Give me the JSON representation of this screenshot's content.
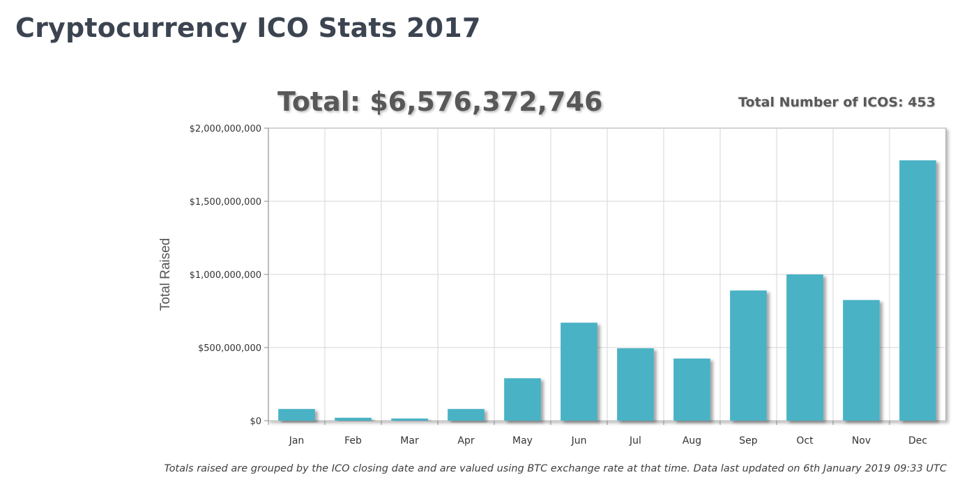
{
  "page": {
    "title": "Cryptocurrency ICO Stats 2017",
    "footnote": "Totals raised are grouped by the ICO closing date and are valued using BTC exchange rate at that time. Data last updated on 6th January 2019 09:33 UTC"
  },
  "colors": {
    "bar": "#4ab2c5",
    "grid": "#d6d6d6",
    "frame": "#aaaaaa",
    "title": "#3b4450"
  },
  "chart_data": {
    "type": "bar",
    "title": "Total: $6,576,372,746",
    "subtitle": "Total Number of ICOS: 453",
    "xlabel": "",
    "ylabel": "Total Raised",
    "categories": [
      "Jan",
      "Feb",
      "Mar",
      "Apr",
      "May",
      "Jun",
      "Jul",
      "Aug",
      "Sep",
      "Oct",
      "Nov",
      "Dec"
    ],
    "values": [
      80000000,
      20000000,
      15000000,
      80000000,
      290000000,
      670000000,
      495000000,
      425000000,
      890000000,
      1000000000,
      825000000,
      1780000000
    ],
    "ylim": [
      0,
      2000000000
    ],
    "yticks": [
      0,
      500000000,
      1000000000,
      1500000000,
      2000000000
    ],
    "ytick_labels": [
      "$0",
      "$500,000,000",
      "$1,000,000,000",
      "$1,500,000,000",
      "$2,000,000,000"
    ],
    "grid": true,
    "legend": "none"
  }
}
